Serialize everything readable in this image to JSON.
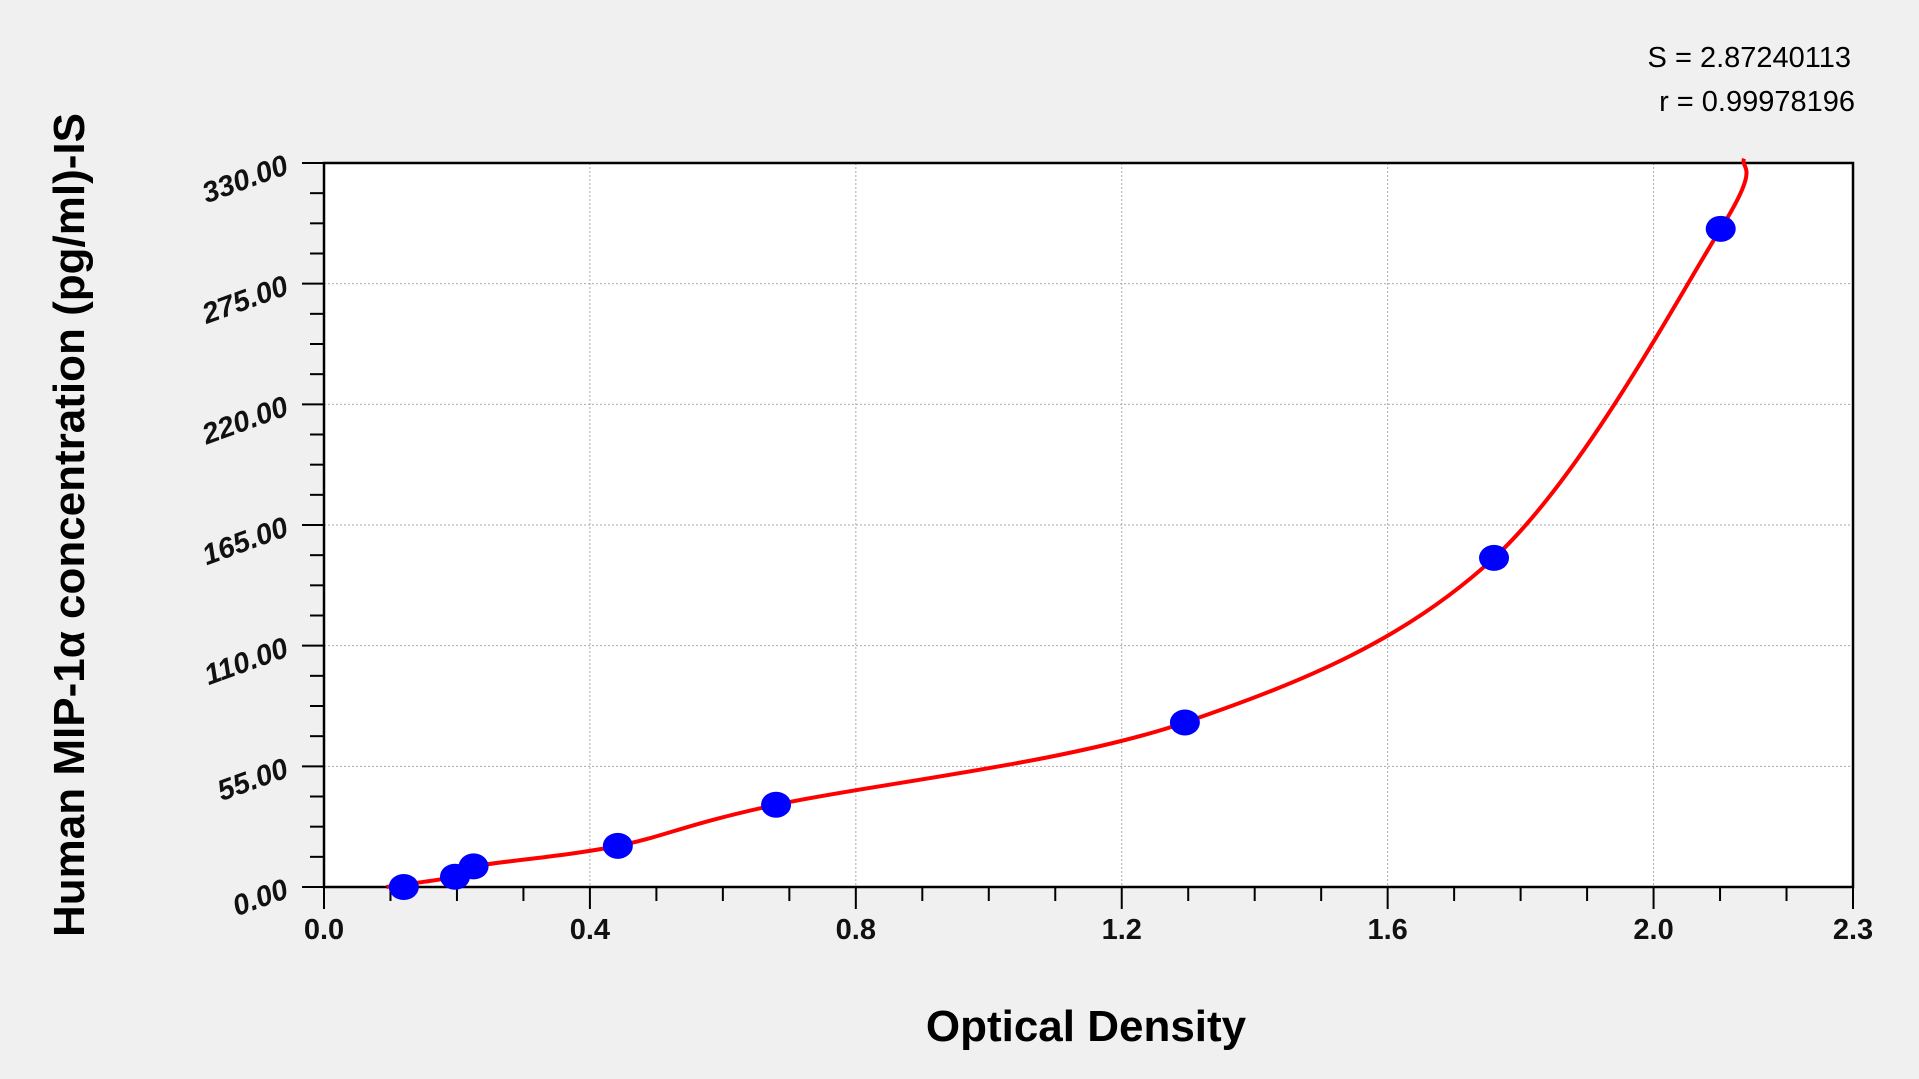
{
  "chart_data": {
    "type": "scatter",
    "title": "",
    "xlabel": "Optical Density",
    "ylabel": "Human MIP-1α concentration (pg/ml)-IS",
    "xlim": [
      0,
      2.3
    ],
    "ylim": [
      0,
      330
    ],
    "x_ticks": [
      "0.0",
      "0.4",
      "0.8",
      "1.2",
      "1.6",
      "2.0",
      "2.3"
    ],
    "x_tick_values": [
      0,
      0.4,
      0.8,
      1.2,
      1.6,
      2.0,
      2.3
    ],
    "y_ticks": [
      "0.00",
      "55.00",
      "110.00",
      "165.00",
      "220.00",
      "275.00",
      "330.00"
    ],
    "y_tick_values": [
      0,
      55,
      110,
      165,
      220,
      275,
      330
    ],
    "grid": true,
    "points": {
      "x": [
        0.12,
        0.197,
        0.225,
        0.442,
        0.68,
        1.295,
        1.76,
        2.101
      ],
      "y": [
        0,
        4.69,
        9.38,
        18.75,
        37.5,
        75,
        150,
        300
      ]
    },
    "fit_curve": {
      "color": "#ff0000",
      "x_range": [
        0.094,
        2.136
      ]
    },
    "point_color": "#0000ff",
    "annotations": {
      "s": "S = 2.87240113",
      "r": "r = 0.99978196"
    }
  }
}
